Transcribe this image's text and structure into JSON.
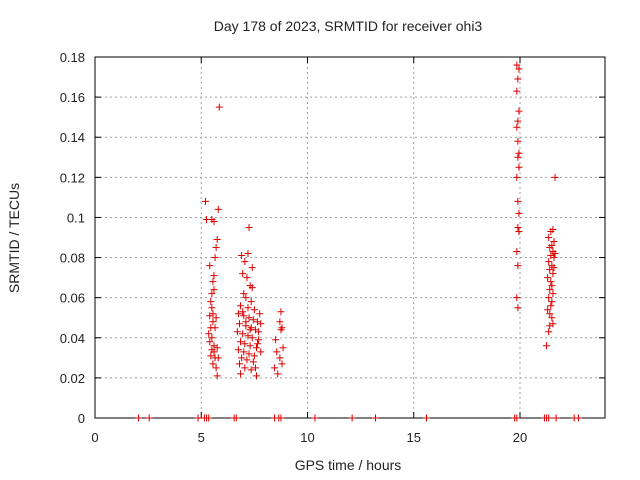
{
  "chart_data": {
    "type": "scatter",
    "title": "Day 178 of 2023, SRMTID for receiver ohi3",
    "xlabel": "GPS time / hours",
    "ylabel": "SRMTID / TECUs",
    "xlim": [
      0,
      24
    ],
    "ylim": [
      0,
      0.18
    ],
    "xticks": [
      0,
      5,
      10,
      15,
      20
    ],
    "yticks": [
      0,
      0.02,
      0.04,
      0.06,
      0.08,
      0.1,
      0.12,
      0.14,
      0.16,
      0.18
    ],
    "xtick_labels": [
      "0",
      "5",
      "10",
      "15",
      "20"
    ],
    "ytick_labels": [
      "0",
      "0.02",
      "0.04",
      "0.06",
      "0.08",
      "0.1",
      "0.12",
      "0.14",
      "0.16",
      "0.18"
    ],
    "grid": true,
    "marker": "+",
    "color": "#dd0000",
    "series": [
      {
        "name": "ohi3",
        "points": [
          [
            2.05,
            0.0
          ],
          [
            2.55,
            0.0
          ],
          [
            4.85,
            0.0
          ],
          [
            5.15,
            0.0
          ],
          [
            5.25,
            0.0
          ],
          [
            5.35,
            0.0
          ],
          [
            6.55,
            0.0
          ],
          [
            6.65,
            0.0
          ],
          [
            8.45,
            0.0
          ],
          [
            8.65,
            0.0
          ],
          [
            8.75,
            0.0
          ],
          [
            10.35,
            0.0
          ],
          [
            12.1,
            0.0
          ],
          [
            13.2,
            0.0
          ],
          [
            15.6,
            0.0
          ],
          [
            19.75,
            0.0
          ],
          [
            19.85,
            0.0
          ],
          [
            21.15,
            0.0
          ],
          [
            21.25,
            0.0
          ],
          [
            21.35,
            0.0
          ],
          [
            21.7,
            0.0
          ],
          [
            22.55,
            0.0
          ],
          [
            22.75,
            0.0
          ],
          [
            5.2,
            0.108
          ],
          [
            5.25,
            0.099
          ],
          [
            5.5,
            0.099
          ],
          [
            5.6,
            0.098
          ],
          [
            5.85,
            0.155
          ],
          [
            5.8,
            0.104
          ],
          [
            5.75,
            0.089
          ],
          [
            5.7,
            0.085
          ],
          [
            5.65,
            0.08
          ],
          [
            5.4,
            0.076
          ],
          [
            5.6,
            0.071
          ],
          [
            5.55,
            0.068
          ],
          [
            5.6,
            0.064
          ],
          [
            5.5,
            0.062
          ],
          [
            5.45,
            0.058
          ],
          [
            5.5,
            0.055
          ],
          [
            5.4,
            0.051
          ],
          [
            5.55,
            0.048
          ],
          [
            5.45,
            0.045
          ],
          [
            5.35,
            0.042
          ],
          [
            5.5,
            0.04
          ],
          [
            5.4,
            0.038
          ],
          [
            5.6,
            0.036
          ],
          [
            5.5,
            0.034
          ],
          [
            5.45,
            0.031
          ],
          [
            5.65,
            0.03
          ],
          [
            5.55,
            0.027
          ],
          [
            5.7,
            0.025
          ],
          [
            5.75,
            0.021
          ],
          [
            5.7,
            0.05
          ],
          [
            5.65,
            0.045
          ],
          [
            5.6,
            0.033
          ],
          [
            5.75,
            0.035
          ],
          [
            5.8,
            0.03
          ],
          [
            5.55,
            0.052
          ],
          [
            7.25,
            0.095
          ],
          [
            6.9,
            0.081
          ],
          [
            7.05,
            0.078
          ],
          [
            7.2,
            0.082
          ],
          [
            7.4,
            0.075
          ],
          [
            6.95,
            0.072
          ],
          [
            7.15,
            0.07
          ],
          [
            7.3,
            0.066
          ],
          [
            7.0,
            0.062
          ],
          [
            7.1,
            0.06
          ],
          [
            7.35,
            0.058
          ],
          [
            6.85,
            0.056
          ],
          [
            7.2,
            0.055
          ],
          [
            7.5,
            0.054
          ],
          [
            6.75,
            0.052
          ],
          [
            7.0,
            0.051
          ],
          [
            7.25,
            0.05
          ],
          [
            7.45,
            0.049
          ],
          [
            7.65,
            0.048
          ],
          [
            6.8,
            0.047
          ],
          [
            7.1,
            0.046
          ],
          [
            7.35,
            0.045
          ],
          [
            7.55,
            0.044
          ],
          [
            6.7,
            0.043
          ],
          [
            6.95,
            0.042
          ],
          [
            7.2,
            0.041
          ],
          [
            7.4,
            0.04
          ],
          [
            7.7,
            0.039
          ],
          [
            6.85,
            0.038
          ],
          [
            7.05,
            0.037
          ],
          [
            7.3,
            0.036
          ],
          [
            7.6,
            0.035
          ],
          [
            6.75,
            0.034
          ],
          [
            7.0,
            0.033
          ],
          [
            7.25,
            0.032
          ],
          [
            7.5,
            0.031
          ],
          [
            6.9,
            0.03
          ],
          [
            7.15,
            0.029
          ],
          [
            7.45,
            0.028
          ],
          [
            6.8,
            0.027
          ],
          [
            7.05,
            0.025
          ],
          [
            7.35,
            0.024
          ],
          [
            6.85,
            0.022
          ],
          [
            7.6,
            0.021
          ],
          [
            7.75,
            0.052
          ],
          [
            7.8,
            0.047
          ],
          [
            7.7,
            0.043
          ],
          [
            7.65,
            0.037
          ],
          [
            7.8,
            0.033
          ],
          [
            7.55,
            0.025
          ],
          [
            7.4,
            0.065
          ],
          [
            7.1,
            0.048
          ],
          [
            6.95,
            0.053
          ],
          [
            7.3,
            0.044
          ],
          [
            8.5,
            0.039
          ],
          [
            8.55,
            0.033
          ],
          [
            8.45,
            0.025
          ],
          [
            8.6,
            0.022
          ],
          [
            8.75,
            0.053
          ],
          [
            8.7,
            0.048
          ],
          [
            8.8,
            0.045
          ],
          [
            8.75,
            0.044
          ],
          [
            8.85,
            0.035
          ],
          [
            8.7,
            0.03
          ],
          [
            8.8,
            0.027
          ],
          [
            19.85,
            0.176
          ],
          [
            19.95,
            0.174
          ],
          [
            19.9,
            0.169
          ],
          [
            19.85,
            0.163
          ],
          [
            19.95,
            0.153
          ],
          [
            19.9,
            0.148
          ],
          [
            19.85,
            0.145
          ],
          [
            19.9,
            0.138
          ],
          [
            19.95,
            0.132
          ],
          [
            19.9,
            0.13
          ],
          [
            19.95,
            0.125
          ],
          [
            19.85,
            0.12
          ],
          [
            19.9,
            0.108
          ],
          [
            19.95,
            0.102
          ],
          [
            19.9,
            0.095
          ],
          [
            19.95,
            0.093
          ],
          [
            19.85,
            0.083
          ],
          [
            19.9,
            0.076
          ],
          [
            19.85,
            0.06
          ],
          [
            19.9,
            0.055
          ],
          [
            21.65,
            0.12
          ],
          [
            21.55,
            0.094
          ],
          [
            21.45,
            0.093
          ],
          [
            21.35,
            0.09
          ],
          [
            21.6,
            0.088
          ],
          [
            21.5,
            0.086
          ],
          [
            21.4,
            0.085
          ],
          [
            21.55,
            0.083
          ],
          [
            21.45,
            0.081
          ],
          [
            21.6,
            0.08
          ],
          [
            21.35,
            0.078
          ],
          [
            21.5,
            0.076
          ],
          [
            21.4,
            0.074
          ],
          [
            21.55,
            0.072
          ],
          [
            21.3,
            0.07
          ],
          [
            21.45,
            0.068
          ],
          [
            21.5,
            0.066
          ],
          [
            21.4,
            0.064
          ],
          [
            21.55,
            0.062
          ],
          [
            21.35,
            0.06
          ],
          [
            21.5,
            0.058
          ],
          [
            21.45,
            0.056
          ],
          [
            21.3,
            0.054
          ],
          [
            21.4,
            0.052
          ],
          [
            21.5,
            0.05
          ],
          [
            21.55,
            0.047
          ],
          [
            21.4,
            0.046
          ],
          [
            21.35,
            0.043
          ],
          [
            21.25,
            0.036
          ],
          [
            21.6,
            0.075
          ],
          [
            21.65,
            0.082
          ]
        ]
      }
    ]
  }
}
